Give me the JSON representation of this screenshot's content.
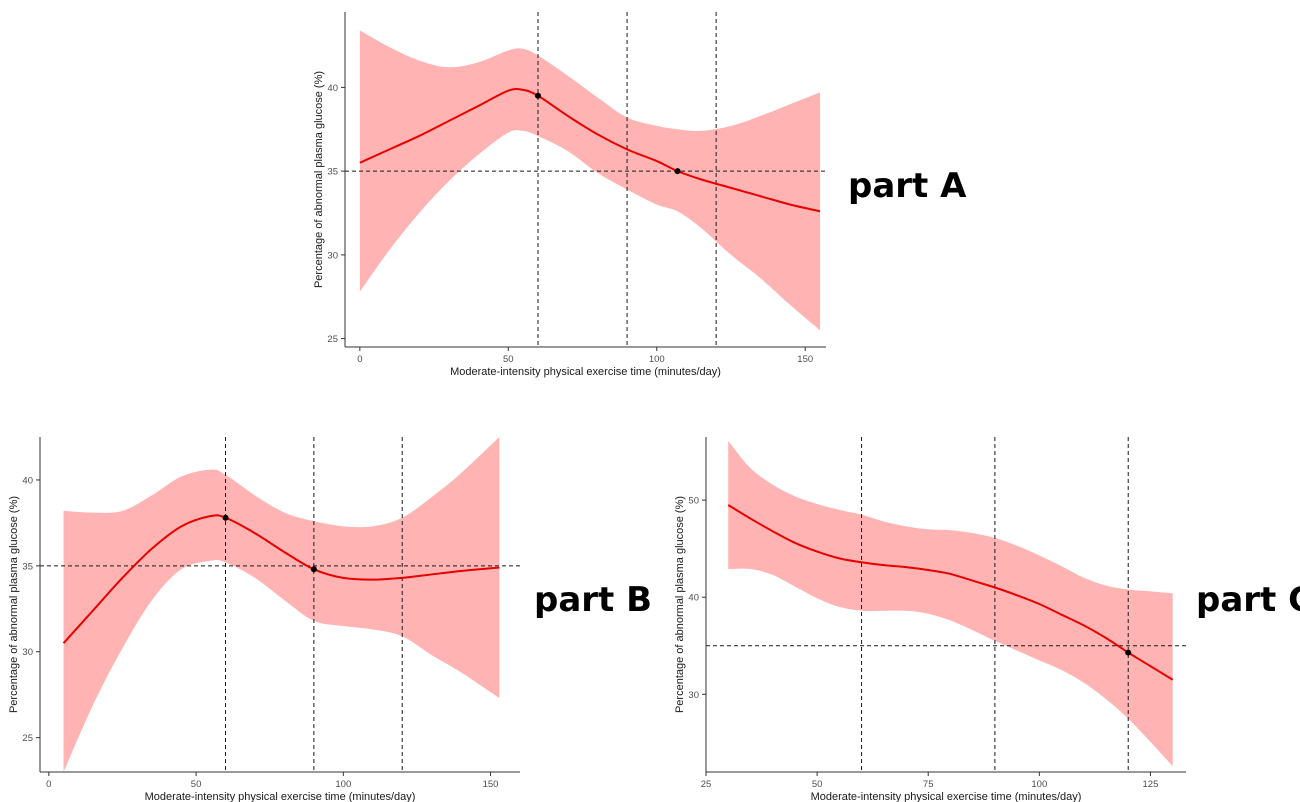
{
  "colors": {
    "band": "#ffb3b3",
    "line": "#e60000",
    "ref": "#1a1a1a",
    "point": "#000000",
    "axis": "#333333"
  },
  "chart_data": [
    {
      "type": "line",
      "label": "part A",
      "xlabel": "Moderate-intensity physical exercise time (minutes/day)",
      "ylabel": "Percentage of abnormal plasma glucose (%)",
      "xlim": [
        -5,
        157
      ],
      "ylim": [
        24.5,
        44.5
      ],
      "xticks": [
        0,
        50,
        100,
        150
      ],
      "yticks": [
        25,
        30,
        35,
        40
      ],
      "grid": false,
      "vlines": [
        60,
        90,
        120
      ],
      "hline": 35,
      "series": [
        {
          "x": [
            0,
            10,
            20,
            30,
            40,
            50,
            55,
            60,
            70,
            80,
            90,
            100,
            107,
            115,
            125,
            135,
            145,
            155
          ],
          "y": [
            35.5,
            36.3,
            37.1,
            38.0,
            38.9,
            39.8,
            39.85,
            39.5,
            38.3,
            37.2,
            36.3,
            35.6,
            35.0,
            34.5,
            34.0,
            33.5,
            33.0,
            32.6
          ],
          "lower": [
            27.8,
            30.3,
            32.5,
            34.4,
            36.0,
            37.3,
            37.4,
            37.1,
            36.2,
            34.9,
            33.9,
            33.0,
            32.6,
            31.6,
            30.0,
            28.6,
            27.0,
            25.5
          ],
          "upper": [
            43.4,
            42.4,
            41.6,
            41.2,
            41.5,
            42.2,
            42.3,
            41.9,
            40.7,
            39.4,
            38.2,
            37.7,
            37.5,
            37.4,
            37.7,
            38.3,
            39.0,
            39.7
          ]
        }
      ],
      "points": [
        {
          "x": 60,
          "y": 39.5
        },
        {
          "x": 107,
          "y": 35.0
        }
      ]
    },
    {
      "type": "line",
      "label": "part B",
      "xlabel": "Moderate-intensity physical exercise time (minutes/day)",
      "ylabel": "Percentage of abnormal plasma glucose (%)",
      "xlim": [
        -3,
        160
      ],
      "ylim": [
        23,
        42.5
      ],
      "xticks": [
        0,
        50,
        100,
        150
      ],
      "yticks": [
        25,
        30,
        35,
        40
      ],
      "grid": false,
      "vlines": [
        60,
        90,
        120
      ],
      "hline": 35,
      "series": [
        {
          "x": [
            5,
            15,
            25,
            35,
            45,
            55,
            60,
            70,
            80,
            90,
            100,
            110,
            120,
            130,
            140,
            153
          ],
          "y": [
            30.5,
            32.4,
            34.3,
            36.0,
            37.3,
            37.9,
            37.8,
            36.9,
            35.8,
            34.8,
            34.3,
            34.2,
            34.3,
            34.5,
            34.7,
            34.9
          ],
          "lower": [
            23.0,
            26.9,
            30.2,
            33.0,
            34.8,
            35.3,
            35.2,
            34.3,
            33.0,
            31.8,
            31.5,
            31.3,
            30.9,
            29.8,
            28.8,
            27.3
          ],
          "upper": [
            38.2,
            38.1,
            38.2,
            39.1,
            40.2,
            40.6,
            40.3,
            39.1,
            38.1,
            37.6,
            37.3,
            37.3,
            37.8,
            39.0,
            40.4,
            42.5
          ]
        }
      ],
      "points": [
        {
          "x": 60,
          "y": 37.8
        },
        {
          "x": 90,
          "y": 34.8
        }
      ]
    },
    {
      "type": "line",
      "label": "part C",
      "xlabel": "Moderate-intensity physical exercise time (minutes/day)",
      "ylabel": "Percentage of abnormal plasma glucose (%)",
      "xlim": [
        25,
        133
      ],
      "ylim": [
        22,
        56.5
      ],
      "xticks": [
        25,
        50,
        75,
        100,
        125
      ],
      "yticks": [
        30,
        40,
        50
      ],
      "grid": false,
      "vlines": [
        60,
        90,
        120
      ],
      "hline": 35,
      "series": [
        {
          "x": [
            30,
            35,
            40,
            45,
            50,
            55,
            60,
            65,
            70,
            75,
            80,
            85,
            90,
            95,
            100,
            105,
            110,
            115,
            120,
            125,
            130
          ],
          "y": [
            49.5,
            48.1,
            46.8,
            45.6,
            44.7,
            44.0,
            43.6,
            43.3,
            43.1,
            42.8,
            42.4,
            41.7,
            41.0,
            40.2,
            39.3,
            38.2,
            37.1,
            35.8,
            34.3,
            32.9,
            31.5
          ],
          "lower": [
            42.9,
            42.9,
            42.3,
            41.1,
            39.9,
            39.0,
            38.6,
            38.6,
            38.6,
            38.3,
            37.6,
            36.6,
            35.5,
            34.5,
            33.5,
            32.5,
            31.2,
            29.5,
            27.5,
            25.1,
            22.6
          ],
          "upper": [
            56.1,
            53.3,
            51.6,
            50.4,
            49.6,
            49.0,
            48.5,
            47.8,
            47.3,
            47.0,
            46.9,
            46.6,
            46.1,
            45.3,
            44.3,
            43.2,
            42.0,
            41.2,
            40.8,
            40.6,
            40.4
          ]
        }
      ],
      "points": [
        {
          "x": 120,
          "y": 34.3
        }
      ]
    }
  ]
}
